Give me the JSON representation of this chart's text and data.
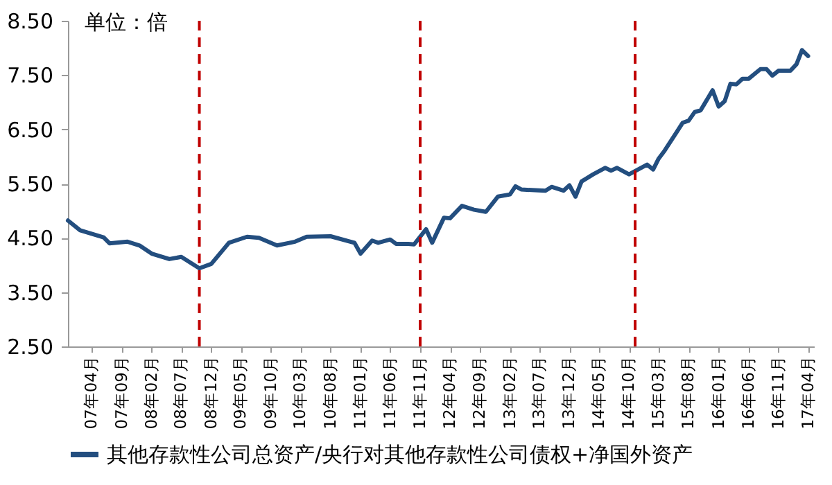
{
  "chart_data": {
    "type": "line",
    "annotations": [
      "单位：倍"
    ],
    "x": [
      "2006-12",
      "2007-02",
      "2007-06",
      "2007-07",
      "2007-10",
      "2007-12",
      "2008-02",
      "2008-05",
      "2008-07",
      "2008-10",
      "2008-12",
      "2009-03",
      "2009-06",
      "2009-08",
      "2009-11",
      "2010-02",
      "2010-04",
      "2010-08",
      "2010-12",
      "2011-01",
      "2011-03",
      "2011-04",
      "2011-06",
      "2011-07",
      "2011-09",
      "2011-10",
      "2011-12",
      "2012-01",
      "2012-03",
      "2012-04",
      "2012-06",
      "2012-08",
      "2012-10",
      "2012-12",
      "2013-02",
      "2013-03",
      "2013-04",
      "2013-08",
      "2013-09",
      "2013-11",
      "2013-12",
      "2014-01",
      "2014-02",
      "2014-04",
      "2014-06",
      "2014-07",
      "2014-08",
      "2014-10",
      "2015-01",
      "2015-02",
      "2015-03",
      "2015-04",
      "2015-06",
      "2015-07",
      "2015-08",
      "2015-09",
      "2015-10",
      "2015-12",
      "2016-01",
      "2016-02",
      "2016-03",
      "2016-04",
      "2016-05",
      "2016-06",
      "2016-08",
      "2016-09",
      "2016-10",
      "2016-11",
      "2017-01",
      "2017-02",
      "2017-03",
      "2017-04"
    ],
    "series": [
      {
        "name": "其他存款性公司总资产/央行对其他存款性公司债权+净国外资产",
        "color": "#234e7f",
        "values": [
          4.82,
          4.64,
          4.51,
          4.4,
          4.43,
          4.36,
          4.21,
          4.11,
          4.15,
          3.94,
          4.02,
          4.41,
          4.52,
          4.5,
          4.36,
          4.43,
          4.52,
          4.53,
          4.41,
          4.21,
          4.45,
          4.41,
          4.47,
          4.39,
          4.39,
          4.38,
          4.66,
          4.41,
          4.87,
          4.86,
          5.09,
          5.02,
          4.98,
          5.26,
          5.3,
          5.45,
          5.39,
          5.37,
          5.44,
          5.37,
          5.47,
          5.26,
          5.54,
          5.67,
          5.79,
          5.74,
          5.79,
          5.67,
          5.85,
          5.76,
          5.96,
          6.11,
          6.45,
          6.62,
          6.66,
          6.82,
          6.85,
          7.22,
          6.92,
          7.02,
          7.34,
          7.33,
          7.43,
          7.43,
          7.61,
          7.61,
          7.49,
          7.58,
          7.58,
          7.7,
          7.96,
          7.85
        ]
      }
    ],
    "xlim": [
      "2006-12",
      "2017-05"
    ],
    "xticks": [
      {
        "value": "2007-04",
        "label": "07年04月"
      },
      {
        "value": "2007-09",
        "label": "07年09月"
      },
      {
        "value": "2008-02",
        "label": "08年02月"
      },
      {
        "value": "2008-07",
        "label": "08年07月"
      },
      {
        "value": "2008-12",
        "label": "08年12月"
      },
      {
        "value": "2009-05",
        "label": "09年05月"
      },
      {
        "value": "2009-10",
        "label": "09年10月"
      },
      {
        "value": "2010-03",
        "label": "10年03月"
      },
      {
        "value": "2010-08",
        "label": "10年08月"
      },
      {
        "value": "2011-01",
        "label": "11年01月"
      },
      {
        "value": "2011-06",
        "label": "11年06月"
      },
      {
        "value": "2011-11",
        "label": "11年11月"
      },
      {
        "value": "2012-04",
        "label": "12年04月"
      },
      {
        "value": "2012-09",
        "label": "12年09月"
      },
      {
        "value": "2013-02",
        "label": "13年02月"
      },
      {
        "value": "2013-07",
        "label": "13年07月"
      },
      {
        "value": "2013-12",
        "label": "13年12月"
      },
      {
        "value": "2014-05",
        "label": "14年05月"
      },
      {
        "value": "2014-10",
        "label": "14年10月"
      },
      {
        "value": "2015-03",
        "label": "15年03月"
      },
      {
        "value": "2015-08",
        "label": "15年08月"
      },
      {
        "value": "2016-01",
        "label": "16年01月"
      },
      {
        "value": "2016-06",
        "label": "16年06月"
      },
      {
        "value": "2016-11",
        "label": "16年11月"
      },
      {
        "value": "2017-04",
        "label": "17年04月"
      }
    ],
    "ylim": [
      2.5,
      8.5
    ],
    "yticks": [
      {
        "value": 2.5,
        "label": "2.50"
      },
      {
        "value": 3.5,
        "label": "3.50"
      },
      {
        "value": 4.5,
        "label": "4.50"
      },
      {
        "value": 5.5,
        "label": "5.50"
      },
      {
        "value": 6.5,
        "label": "6.50"
      },
      {
        "value": 7.5,
        "label": "7.50"
      },
      {
        "value": 8.5,
        "label": "8.50"
      }
    ],
    "ref_lines": [
      {
        "axis": "x",
        "value": "2008-10",
        "color": "#c00000",
        "line_style": "dashed"
      },
      {
        "axis": "x",
        "value": "2011-11",
        "color": "#c00000",
        "line_style": "dashed"
      },
      {
        "axis": "x",
        "value": "2014-11",
        "color": "#c00000",
        "line_style": "dashed"
      }
    ],
    "grid": false,
    "legend": "bottom",
    "line_style": "solid",
    "marker": "none"
  }
}
